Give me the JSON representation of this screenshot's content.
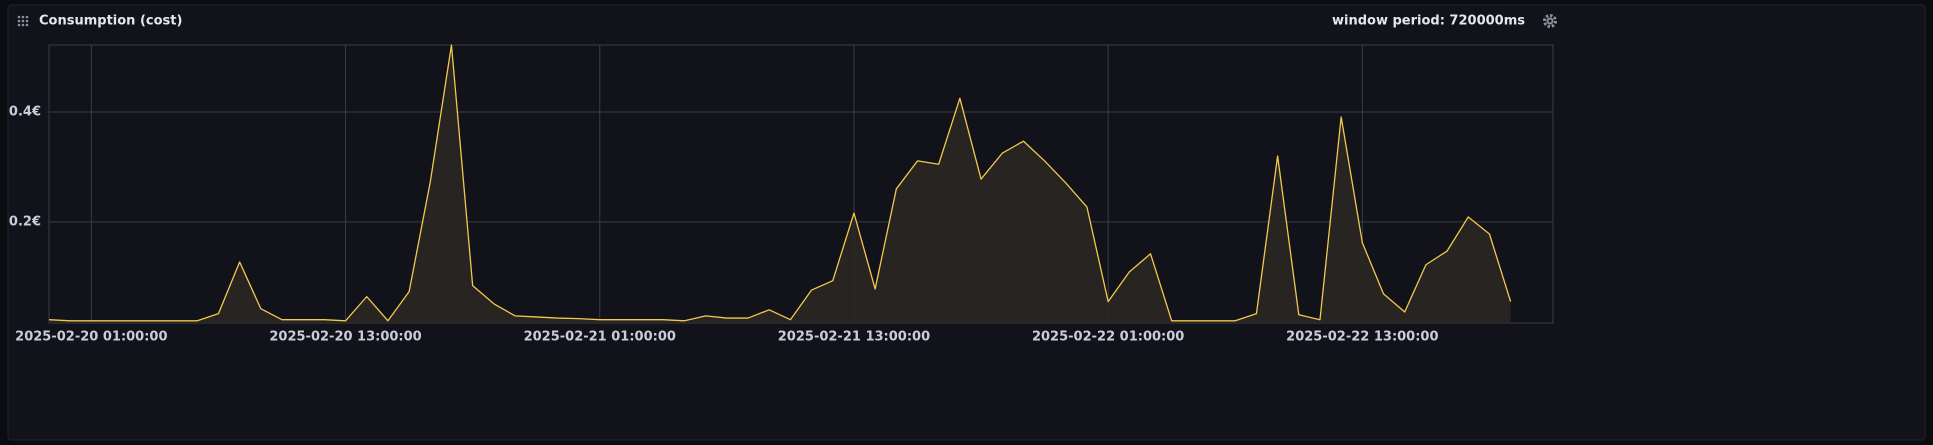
{
  "chart_data": {
    "type": "area-line",
    "title": "Consumption (cost)",
    "annotation": "window period: 720000ms",
    "color": "#f2c94c",
    "fill": "#2a2724",
    "grid": true,
    "xlim": [
      "2025-02-19 23:00:00",
      "2025-02-22 22:00:00"
    ],
    "xticks": [
      "2025-02-20 01:00:00",
      "2025-02-20 13:00:00",
      "2025-02-21 01:00:00",
      "2025-02-21 13:00:00",
      "2025-02-22 01:00:00",
      "2025-02-22 13:00:00"
    ],
    "ylim": [
      0.016,
      0.522
    ],
    "yticks": [
      {
        "value": 0.2,
        "label": "0.2€"
      },
      {
        "value": 0.4,
        "label": "0.4€"
      }
    ],
    "x": [
      "2025-02-19 23:00:00",
      "2025-02-20 00:00:00",
      "2025-02-20 01:00:00",
      "2025-02-20 02:00:00",
      "2025-02-20 03:00:00",
      "2025-02-20 04:00:00",
      "2025-02-20 05:00:00",
      "2025-02-20 06:00:00",
      "2025-02-20 07:00:00",
      "2025-02-20 08:00:00",
      "2025-02-20 09:00:00",
      "2025-02-20 10:00:00",
      "2025-02-20 11:00:00",
      "2025-02-20 12:00:00",
      "2025-02-20 13:00:00",
      "2025-02-20 14:00:00",
      "2025-02-20 15:00:00",
      "2025-02-20 16:00:00",
      "2025-02-20 17:00:00",
      "2025-02-20 18:00:00",
      "2025-02-20 19:00:00",
      "2025-02-20 20:00:00",
      "2025-02-20 21:00:00",
      "2025-02-20 22:00:00",
      "2025-02-20 23:00:00",
      "2025-02-21 00:00:00",
      "2025-02-21 01:00:00",
      "2025-02-21 02:00:00",
      "2025-02-21 03:00:00",
      "2025-02-21 04:00:00",
      "2025-02-21 05:00:00",
      "2025-02-21 06:00:00",
      "2025-02-21 07:00:00",
      "2025-02-21 08:00:00",
      "2025-02-21 09:00:00",
      "2025-02-21 10:00:00",
      "2025-02-21 11:00:00",
      "2025-02-21 12:00:00",
      "2025-02-21 13:00:00",
      "2025-02-21 14:00:00",
      "2025-02-21 15:00:00",
      "2025-02-21 16:00:00",
      "2025-02-21 17:00:00",
      "2025-02-21 18:00:00",
      "2025-02-21 19:00:00",
      "2025-02-21 20:00:00",
      "2025-02-21 21:00:00",
      "2025-02-21 22:00:00",
      "2025-02-21 23:00:00",
      "2025-02-22 00:00:00",
      "2025-02-22 01:00:00",
      "2025-02-22 02:00:00",
      "2025-02-22 03:00:00",
      "2025-02-22 04:00:00",
      "2025-02-22 05:00:00",
      "2025-02-22 06:00:00",
      "2025-02-22 07:00:00",
      "2025-02-22 08:00:00",
      "2025-02-22 09:00:00",
      "2025-02-22 10:00:00",
      "2025-02-22 11:00:00",
      "2025-02-22 12:00:00",
      "2025-02-22 13:00:00",
      "2025-02-22 14:00:00",
      "2025-02-22 15:00:00",
      "2025-02-22 16:00:00",
      "2025-02-22 17:00:00",
      "2025-02-22 18:00:00",
      "2025-02-22 19:00:00",
      "2025-02-22 20:00:00"
    ],
    "values": [
      0.022,
      0.02,
      0.02,
      0.02,
      0.02,
      0.02,
      0.02,
      0.02,
      0.033,
      0.127,
      0.042,
      0.022,
      0.022,
      0.022,
      0.02,
      0.064,
      0.02,
      0.073,
      0.273,
      0.522,
      0.084,
      0.051,
      0.029,
      0.027,
      0.025,
      0.024,
      0.022,
      0.022,
      0.022,
      0.022,
      0.02,
      0.029,
      0.025,
      0.025,
      0.04,
      0.022,
      0.076,
      0.093,
      0.216,
      0.078,
      0.26,
      0.311,
      0.305,
      0.425,
      0.278,
      0.325,
      0.347,
      0.311,
      0.271,
      0.227,
      0.055,
      0.109,
      0.142,
      0.02,
      0.02,
      0.02,
      0.02,
      0.033,
      0.32,
      0.031,
      0.022,
      0.391,
      0.162,
      0.069,
      0.036,
      0.122,
      0.147,
      0.209,
      0.178,
      0.055
    ]
  }
}
